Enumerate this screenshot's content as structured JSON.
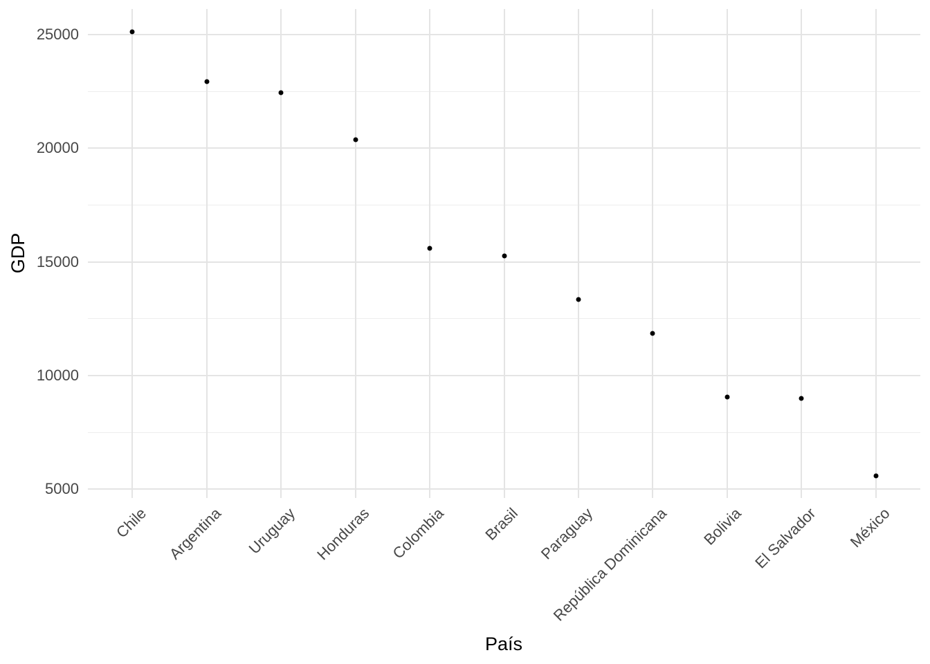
{
  "chart_data": {
    "type": "scatter",
    "title": "",
    "xlabel": "País",
    "ylabel": "GDP",
    "categories": [
      "Chile",
      "Argentina",
      "Uruguay",
      "Honduras",
      "Colombia",
      "Brasil",
      "Paraguay",
      "República Dominicana",
      "Bolivia",
      "El Salvador",
      "México"
    ],
    "values": [
      25130,
      22920,
      22460,
      20390,
      15600,
      15250,
      13360,
      11860,
      9060,
      8980,
      5600
    ],
    "y_ticks": [
      5000,
      10000,
      15000,
      20000,
      25000
    ],
    "y_minor_ticks": [
      7500,
      12500,
      17500,
      22500
    ],
    "ylim": [
      4612,
      26128
    ],
    "x_label_angle_deg": 45,
    "grid": true,
    "legend": false,
    "colors": {
      "point": "#000000",
      "tick_label": "#474747",
      "axis_title": "#000000",
      "gridline_major": "#e4e4e4",
      "gridline_minor": "#ededed",
      "background": "#ffffff"
    }
  }
}
